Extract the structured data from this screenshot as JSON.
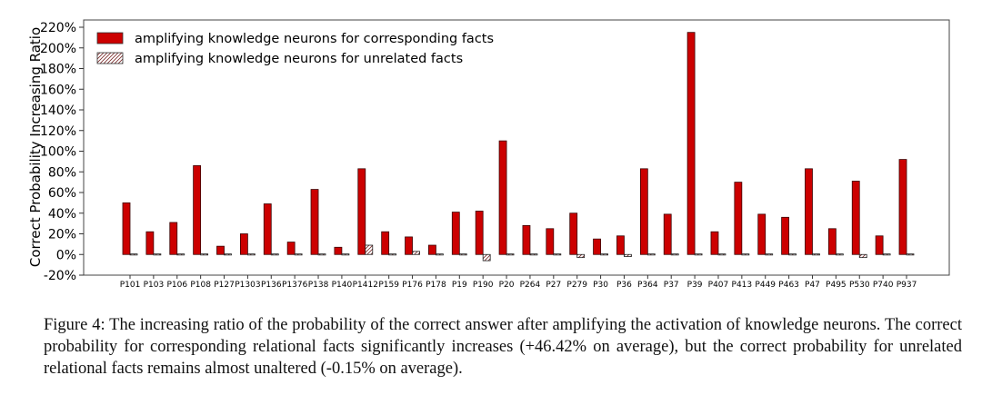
{
  "chart_data": {
    "type": "bar",
    "title": "",
    "xlabel": "",
    "ylabel": "Correct Probability Increasing Ratio",
    "ylim": [
      -20,
      220
    ],
    "yticks": [
      -20,
      0,
      20,
      40,
      60,
      80,
      100,
      120,
      140,
      160,
      180,
      200,
      220
    ],
    "ytick_suffix": "%",
    "legend_position": "top-left",
    "grid": false,
    "categories": [
      "P101",
      "P103",
      "P106",
      "P108",
      "P127",
      "P1303",
      "P136",
      "P1376",
      "P138",
      "P140",
      "P1412",
      "P159",
      "P176",
      "P178",
      "P19",
      "P190",
      "P20",
      "P264",
      "P27",
      "P279",
      "P30",
      "P36",
      "P364",
      "P37",
      "P39",
      "P407",
      "P413",
      "P449",
      "P463",
      "P47",
      "P495",
      "P530",
      "P740",
      "P937"
    ],
    "series": [
      {
        "name": "amplifying knowledge neurons for corresponding facts",
        "color": "#cc0000",
        "pattern": "solid",
        "values": [
          50,
          22,
          31,
          86,
          8,
          20,
          49,
          12,
          63,
          7,
          83,
          22,
          17,
          9,
          41,
          42,
          110,
          28,
          25,
          40,
          15,
          18,
          83,
          39,
          215,
          22,
          70,
          39,
          36,
          83,
          25,
          71,
          18,
          92
        ]
      },
      {
        "name": "amplifying knowledge neurons for unrelated facts",
        "color": "#ffffff",
        "pattern": "hatched",
        "values": [
          1,
          0,
          0,
          0,
          0,
          0,
          0,
          0,
          0,
          0,
          9,
          0,
          3,
          0,
          0,
          -6,
          0,
          0,
          0,
          -3,
          0,
          -2,
          1,
          0,
          1,
          0,
          0,
          0,
          -1,
          0,
          -1,
          -3,
          0,
          0
        ]
      }
    ]
  },
  "caption": {
    "label": "Figure 4:",
    "text": "The increasing ratio of the probability of the correct answer after amplifying the activation of knowledge neurons.  The correct probability for corresponding relational facts significantly increases (+46.42% on average), but the correct probability for unrelated relational facts remains almost unaltered (-0.15% on average)."
  }
}
